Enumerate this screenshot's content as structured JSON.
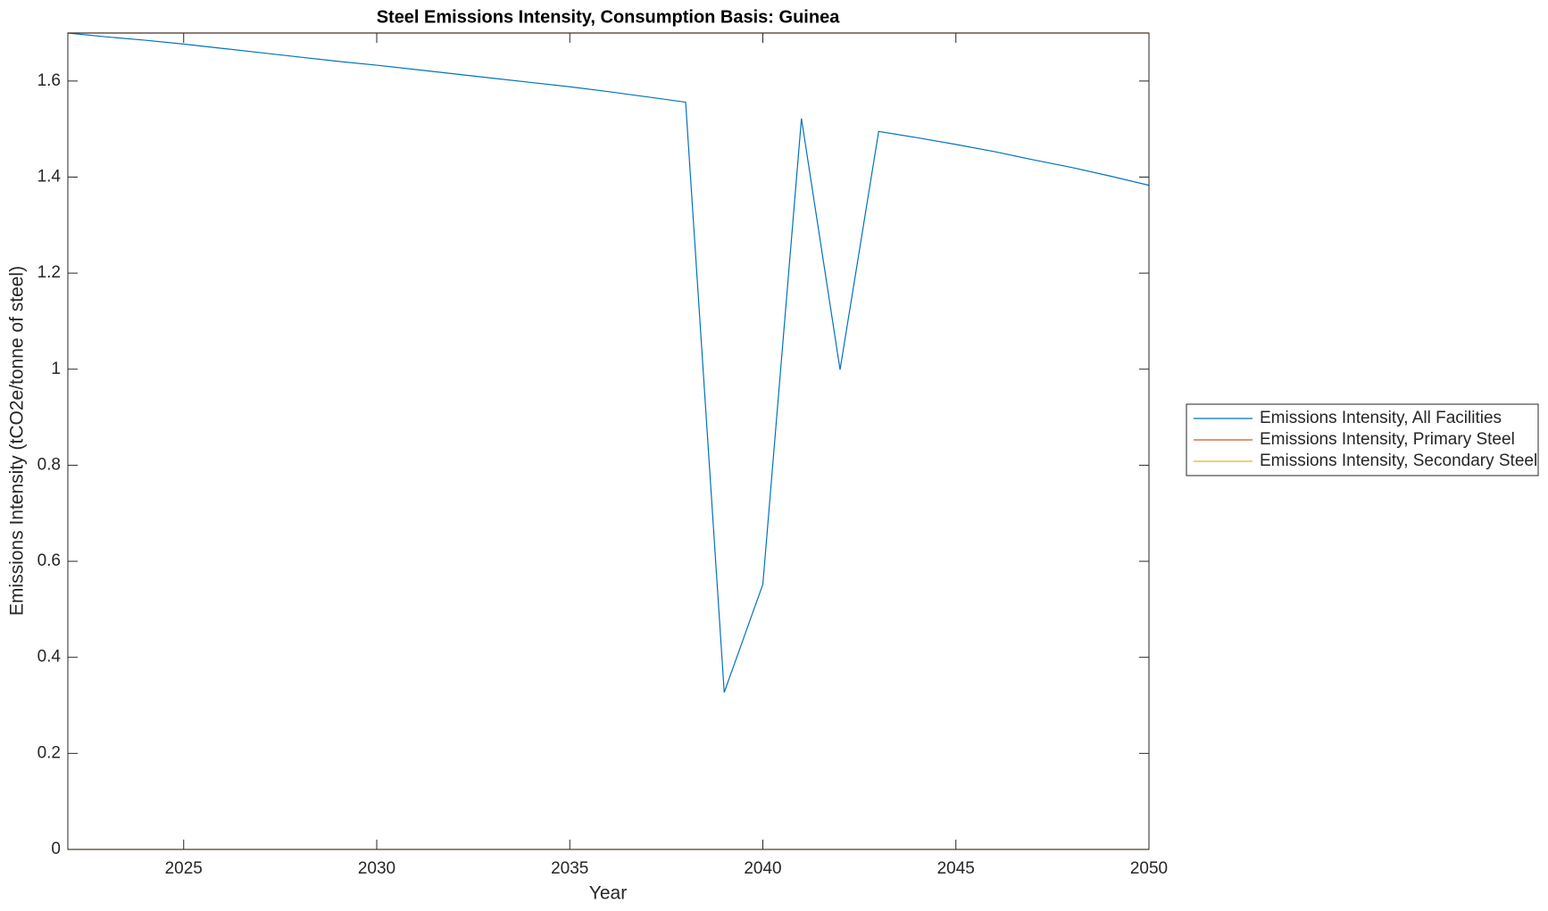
{
  "chart_data": {
    "type": "line",
    "title": "Steel Emissions Intensity, Consumption Basis: Guinea",
    "x_label": "Year",
    "y_label": "Emissions Intensity (tCO2e/tonne of steel)",
    "x": [
      2022,
      2023,
      2024,
      2025,
      2026,
      2027,
      2028,
      2029,
      2030,
      2031,
      2032,
      2033,
      2034,
      2035,
      2036,
      2037,
      2038,
      2039,
      2040,
      2041,
      2042,
      2043,
      2044,
      2045,
      2046,
      2047,
      2048,
      2049,
      2050
    ],
    "series": [
      {
        "name": "Emissions Intensity, All Facilities",
        "color": "#0072BD",
        "values": [
          1.7,
          1.692,
          1.685,
          1.677,
          1.668,
          1.659,
          1.65,
          1.641,
          1.633,
          1.624,
          1.615,
          1.606,
          1.597,
          1.588,
          1.578,
          1.567,
          1.556,
          0.327,
          0.552,
          1.522,
          0.999,
          1.495,
          1.482,
          1.468,
          1.453,
          1.436,
          1.42,
          1.402,
          1.383
        ]
      },
      {
        "name": "Emissions Intensity, Primary Steel",
        "color": "#D95319",
        "values": [
          1.7,
          1.7,
          1.7,
          1.7,
          1.7,
          1.7,
          1.7,
          1.7,
          1.7,
          1.7,
          1.7,
          1.7,
          1.7,
          1.7,
          1.7,
          1.7,
          1.7,
          1.7,
          1.7,
          1.7,
          1.7,
          1.7,
          1.7,
          1.7,
          1.7,
          1.7,
          1.7,
          1.7,
          1.7
        ]
      },
      {
        "name": "Emissions Intensity, Secondary Steel",
        "color": "#EDB120",
        "values": [
          0,
          0,
          0,
          0,
          0,
          0,
          0,
          0,
          0,
          0,
          0,
          0,
          0,
          0,
          0,
          0,
          0,
          0,
          0,
          0,
          0,
          0,
          0,
          0,
          0,
          0,
          0,
          0,
          0
        ]
      }
    ],
    "xlim": [
      2022,
      2050
    ],
    "xticks": [
      2025,
      2030,
      2035,
      2040,
      2045,
      2050
    ],
    "ylim": [
      0,
      1.7
    ],
    "yticks": [
      0,
      0.2,
      0.4,
      0.6,
      0.8,
      1,
      1.2,
      1.4,
      1.6
    ],
    "legend": "outside-right",
    "grid": false
  }
}
